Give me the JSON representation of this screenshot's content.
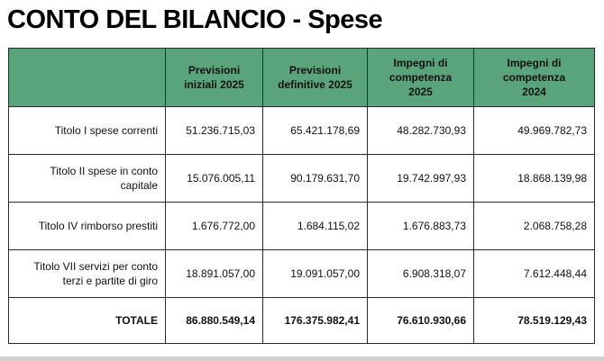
{
  "title": "CONTO DEL BILANCIO - Spese",
  "table": {
    "header_color": "#5aa47c",
    "columns": [
      {
        "label_line1": "Previsioni",
        "label_line2": "iniziali 2025",
        "label_line3": ""
      },
      {
        "label_line1": "Previsioni",
        "label_line2": "definitive 2025",
        "label_line3": ""
      },
      {
        "label_line1": "Impegni di",
        "label_line2": "competenza",
        "label_line3": "2025"
      },
      {
        "label_line1": "Impegni di",
        "label_line2": "competenza",
        "label_line3": "2024"
      }
    ],
    "rows": [
      {
        "label_line1": "Titolo I spese correnti",
        "label_line2": "",
        "values": [
          "51.236.715,03",
          "65.421.178,69",
          "48.282.730,93",
          "49.969.782,73"
        ]
      },
      {
        "label_line1": "Titolo II spese in conto",
        "label_line2": "capitale",
        "values": [
          "15.076.005,11",
          "90.179.631,70",
          "19.742.997,93",
          "18.868.139,98"
        ]
      },
      {
        "label_line1": "Titolo IV rimborso prestiti",
        "label_line2": "",
        "values": [
          "1.676.772,00",
          "1.684.115,02",
          "1.676.883,73",
          "2.068.758,28"
        ]
      },
      {
        "label_line1": "Titolo VII servizi per conto",
        "label_line2": "terzi e partite di giro",
        "values": [
          "18.891.057,00",
          "19.091.057,00",
          "6.908.318,07",
          "7.612.448,44"
        ]
      }
    ],
    "total": {
      "label": "TOTALE",
      "values": [
        "86.880.549,14",
        "176.375.982,41",
        "76.610.930,66",
        "78.519.129,43"
      ]
    }
  }
}
